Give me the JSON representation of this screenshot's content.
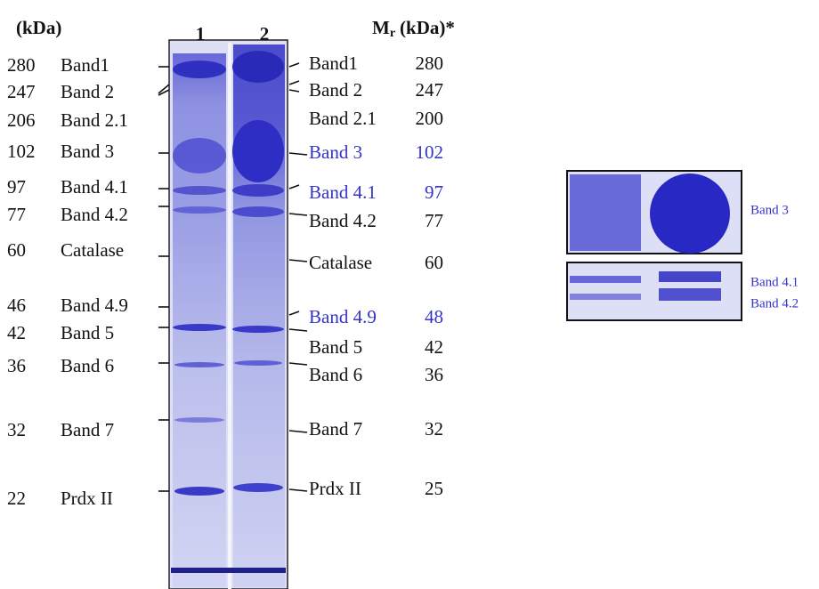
{
  "header": {
    "left_unit": "(kDa)",
    "lanes": [
      "1",
      "2"
    ],
    "right": {
      "symbol": "M",
      "subscript": "r",
      "unit": "(kDa)*"
    }
  },
  "left_markers": [
    {
      "mw": 280,
      "name": "Band1"
    },
    {
      "mw": 247,
      "name": "Band 2"
    },
    {
      "mw": 206,
      "name": "Band 2.1"
    },
    {
      "mw": 102,
      "name": "Band 3"
    },
    {
      "mw": 97,
      "name": "Band 4.1"
    },
    {
      "mw": 77,
      "name": "Band 4.2"
    },
    {
      "mw": 60,
      "name": "Catalase"
    },
    {
      "mw": 46,
      "name": "Band 4.9"
    },
    {
      "mw": 42,
      "name": "Band 5"
    },
    {
      "mw": 36,
      "name": "Band 6"
    },
    {
      "mw": 32,
      "name": "Band 7"
    },
    {
      "mw": 22,
      "name": "Prdx II"
    }
  ],
  "right_markers": [
    {
      "name": "Band1",
      "mw": 280,
      "highlighted": false
    },
    {
      "name": "Band 2",
      "mw": 247,
      "highlighted": false
    },
    {
      "name": "Band 2.1",
      "mw": 200,
      "highlighted": false
    },
    {
      "name": "Band 3",
      "mw": 102,
      "highlighted": true
    },
    {
      "name": "Band 4.1",
      "mw": 97,
      "highlighted": true
    },
    {
      "name": "Band 4.2",
      "mw": 77,
      "highlighted": false
    },
    {
      "name": "Catalase",
      "mw": 60,
      "highlighted": false
    },
    {
      "name": "Band 4.9",
      "mw": 48,
      "highlighted": true
    },
    {
      "name": "Band 5",
      "mw": 42,
      "highlighted": false
    },
    {
      "name": "Band 6",
      "mw": 36,
      "highlighted": false
    },
    {
      "name": "Band 7",
      "mw": 32,
      "highlighted": false
    },
    {
      "name": "Prdx II",
      "mw": 25,
      "highlighted": false
    }
  ],
  "inset": {
    "labels": [
      "Band 3",
      "Band 4.1",
      "Band 4.2"
    ]
  }
}
